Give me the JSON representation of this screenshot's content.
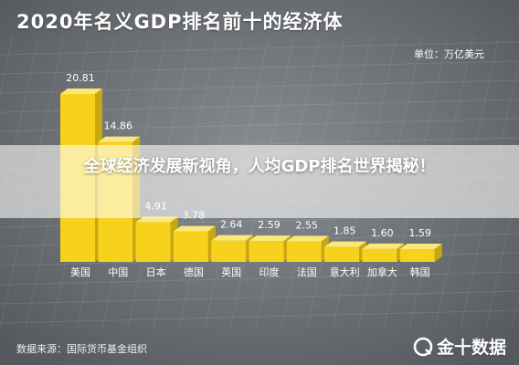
{
  "header": {
    "title": "2020年名义GDP排名前十的经济体",
    "unit": "单位：万亿美元"
  },
  "footer": {
    "source": "数据来源：国际货币基金组织",
    "watermark": "金十数据"
  },
  "overlay": {
    "headline": "全球经济发展新视角，人均GDP排名世界揭秘！"
  },
  "colors": {
    "bar_front": "#f6d21d",
    "bar_top": "#fbe878",
    "bar_side": "#c9a70f",
    "background": "#6f7377",
    "label": "#ffffff"
  },
  "chart_data": {
    "type": "bar",
    "title": "2020年名义GDP排名前十的经济体",
    "unit": "单位：万亿美元",
    "categories": [
      "美国",
      "中国",
      "日本",
      "德国",
      "英国",
      "印度",
      "法国",
      "意大利",
      "加拿大",
      "韩国"
    ],
    "values": [
      20.81,
      14.86,
      4.91,
      3.78,
      2.64,
      2.59,
      2.55,
      1.85,
      1.6,
      1.59
    ],
    "value_labels": [
      "20.81",
      "14.86",
      "4.91",
      "3.78",
      "2.64",
      "2.59",
      "2.55",
      "1.85",
      "1.60",
      "1.59"
    ],
    "ylim": [
      0,
      22
    ],
    "grid": true,
    "legend": "none"
  }
}
